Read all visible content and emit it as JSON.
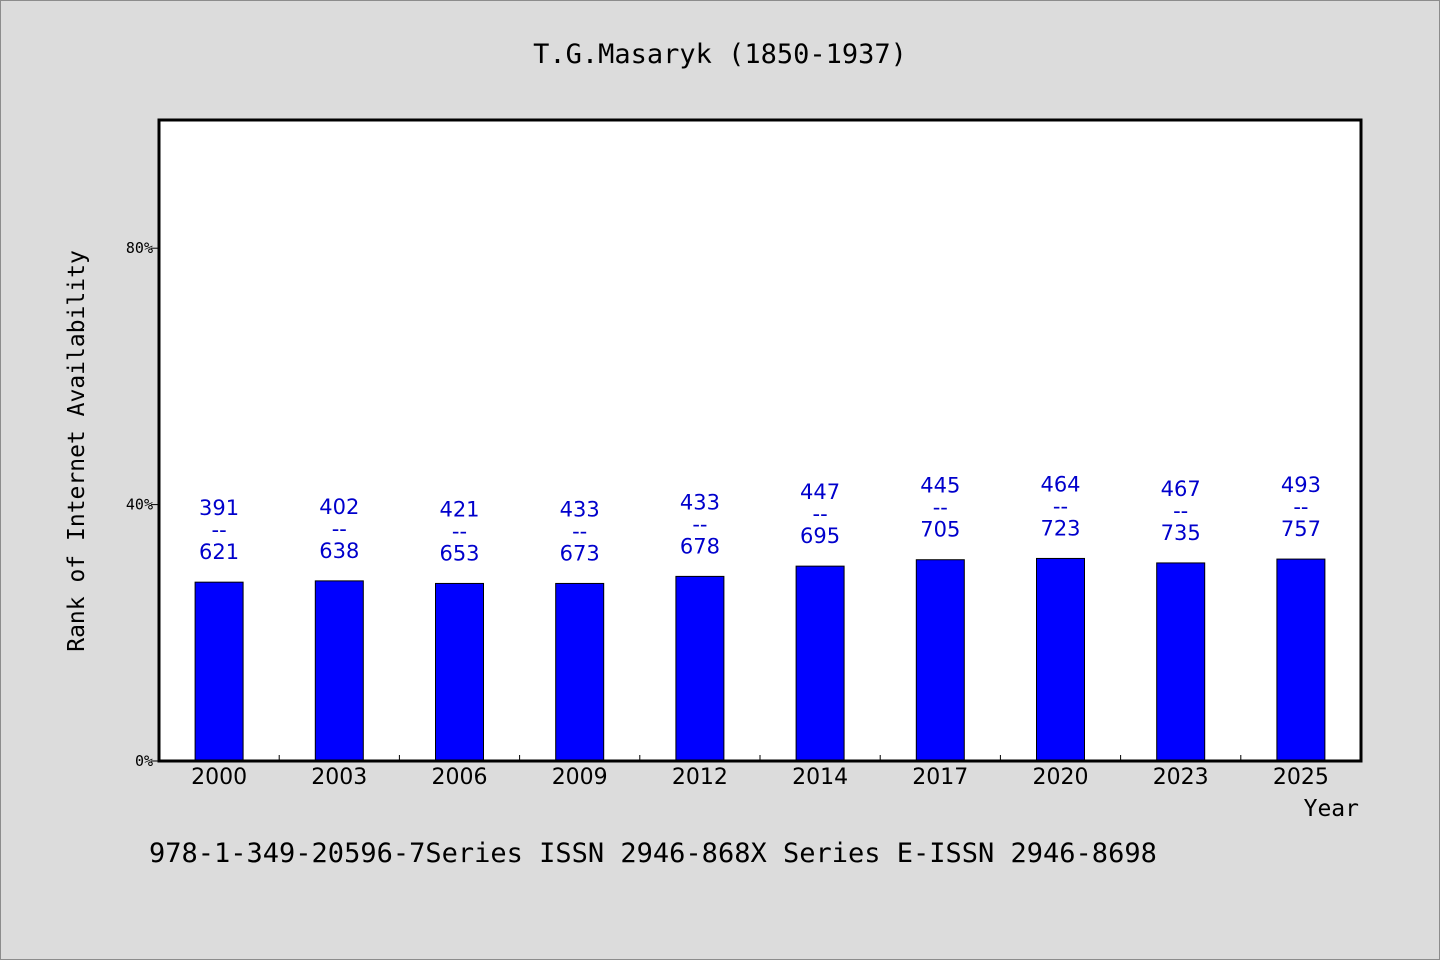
{
  "chart_data": {
    "type": "bar",
    "title": "T.G.Masaryk (1850-1937)",
    "xlabel": "Year",
    "ylabel": "Rank of Internet Availability",
    "ylim": [
      0,
      100
    ],
    "yticks": [
      {
        "value": 0,
        "label": "0%"
      },
      {
        "value": 40,
        "label": "40%"
      },
      {
        "value": 80,
        "label": "80%"
      }
    ],
    "categories": [
      "2000",
      "2003",
      "2006",
      "2009",
      "2012",
      "2014",
      "2017",
      "2020",
      "2023",
      "2025"
    ],
    "values": [
      27.9,
      28.1,
      27.7,
      27.7,
      28.8,
      30.4,
      31.4,
      31.6,
      30.9,
      31.5
    ],
    "data_labels": [
      {
        "top": "391",
        "sep": "--",
        "bottom": "621"
      },
      {
        "top": "402",
        "sep": "--",
        "bottom": "638"
      },
      {
        "top": "421",
        "sep": "--",
        "bottom": "653"
      },
      {
        "top": "433",
        "sep": "--",
        "bottom": "673"
      },
      {
        "top": "433",
        "sep": "--",
        "bottom": "678"
      },
      {
        "top": "447",
        "sep": "--",
        "bottom": "695"
      },
      {
        "top": "445",
        "sep": "--",
        "bottom": "705"
      },
      {
        "top": "464",
        "sep": "--",
        "bottom": "723"
      },
      {
        "top": "467",
        "sep": "--",
        "bottom": "735"
      },
      {
        "top": "493",
        "sep": "--",
        "bottom": "757"
      }
    ],
    "bar_color": "#0000ff",
    "label_color": "#0000cc",
    "grid": false
  },
  "footer": {
    "text": "978-1-349-20596-7Series ISSN 2946-868X Series E-ISSN 2946-8698"
  },
  "colors": {
    "background": "#dcdcdc",
    "plot_background": "#ffffff"
  }
}
